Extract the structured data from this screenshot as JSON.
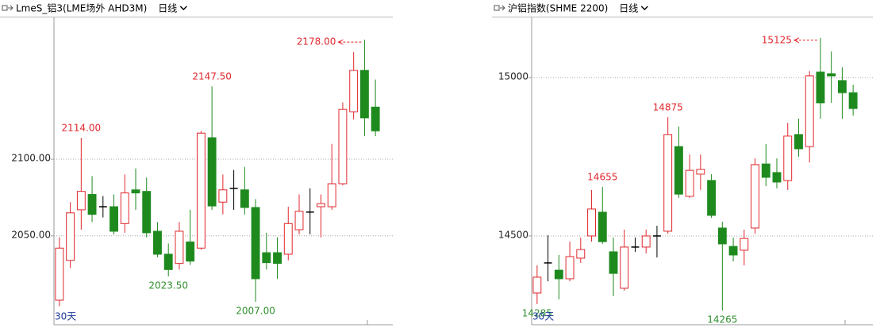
{
  "chart_data": [
    {
      "type": "candlestick",
      "title": "LmeS_铝3(LME场外 AHD3M)",
      "period": "日线",
      "period_label": "30天",
      "up_color": "#e0282e",
      "down_color": "#1e8a1e",
      "doji_color": "#000000",
      "grid": true,
      "ylim": [
        1992,
        2191
      ],
      "yticks": [
        {
          "value": 2050,
          "label": "2050.00"
        },
        {
          "value": 2100,
          "label": "2100.00"
        }
      ],
      "open": [
        2008,
        2034,
        2067,
        2077,
        2069,
        2069,
        2058,
        2080,
        2079,
        2053,
        2038,
        2032,
        2046,
        2042,
        2114,
        2072,
        2081,
        2080,
        2068.5,
        2039,
        2039,
        2038,
        2054,
        2065.5,
        2069,
        2069,
        2084,
        2131,
        2158,
        2134
      ],
      "high": [
        2049,
        2072,
        2114,
        2089,
        2076,
        2077,
        2090,
        2094,
        2088,
        2059,
        2045,
        2059,
        2067,
        2118.5,
        2147.5,
        2090,
        2093,
        2095,
        2074,
        2052,
        2049,
        2069,
        2077,
        2081,
        2077,
        2110,
        2137,
        2170,
        2178,
        2152
      ],
      "low": [
        2004,
        2029,
        2054,
        2059,
        2062,
        2051,
        2052,
        2067,
        2049,
        2036,
        2023.5,
        2028,
        2031,
        2041,
        2067,
        2064,
        2067,
        2064,
        2007,
        2028,
        2022,
        2034,
        2051,
        2051,
        2049,
        2067,
        2083,
        2126,
        2115,
        2115
      ],
      "close": [
        2042,
        2065,
        2079,
        2064,
        2069,
        2053,
        2078,
        2078,
        2052,
        2038,
        2028,
        2053,
        2033.5,
        2117,
        2069.5,
        2080,
        2081,
        2068.5,
        2022,
        2032.5,
        2032,
        2058,
        2066,
        2065.5,
        2071,
        2084,
        2132.5,
        2158,
        2127,
        2118.5
      ],
      "annotations": [
        {
          "value": 2114,
          "label": "2114.00"
        },
        {
          "value": 2147.5,
          "label": "2147.50"
        },
        {
          "value": 2023.5,
          "label": "2023.50"
        },
        {
          "value": 2007,
          "label": "2007.00"
        },
        {
          "value": 2178,
          "label": "2178.00"
        }
      ]
    },
    {
      "type": "candlestick",
      "title": "沪铝指数(SHME 2200)",
      "period": "日线",
      "period_label": "30天",
      "up_color": "#e0282e",
      "down_color": "#1e8a1e",
      "doji_color": "#000000",
      "grid": true,
      "ylim": [
        14220,
        15182
      ],
      "yticks": [
        14500,
        15000
      ],
      "open": [
        14320,
        14415,
        14392,
        14365,
        14430,
        14500,
        14575,
        14450,
        14335,
        14465,
        14465,
        14500,
        14515,
        14782,
        14625,
        14695,
        14675,
        14525,
        14467,
        14455,
        14525,
        14727,
        14700,
        14675,
        14820,
        14782,
        15017,
        15012,
        14990,
        14952
      ],
      "high": [
        14407,
        14502,
        14440,
        14482,
        14495,
        14645,
        14655,
        14495,
        14520,
        14495,
        14520,
        14532,
        14875,
        14845,
        14757,
        14757,
        14695,
        14545,
        14495,
        14520,
        14745,
        14790,
        14745,
        14857,
        14870,
        15020,
        15125,
        15082,
        15032,
        14977
      ],
      "low": [
        14285,
        14357,
        14300,
        14357,
        14415,
        14482,
        14475,
        14310,
        14327,
        14450,
        14445,
        14432,
        14507,
        14620,
        14620,
        14645,
        14557,
        14265,
        14420,
        14407,
        14507,
        14657,
        14650,
        14645,
        14750,
        14732,
        14870,
        14920,
        14870,
        14880
      ],
      "close": [
        14370,
        14415,
        14365,
        14435,
        14457,
        14585,
        14482,
        14382,
        14465,
        14465,
        14500,
        14500,
        14820,
        14632,
        14707,
        14710,
        14565,
        14475,
        14440,
        14492,
        14725,
        14685,
        14670,
        14815,
        14775,
        15005,
        14920,
        15005,
        14952,
        14902
      ],
      "annotations": [
        {
          "value": 14655,
          "label": "14655"
        },
        {
          "value": 14875,
          "label": "14875"
        },
        {
          "value": 15125,
          "label": "15125"
        },
        {
          "value": 14285,
          "label": "14285"
        },
        {
          "value": 14265,
          "label": "14265"
        }
      ]
    }
  ]
}
